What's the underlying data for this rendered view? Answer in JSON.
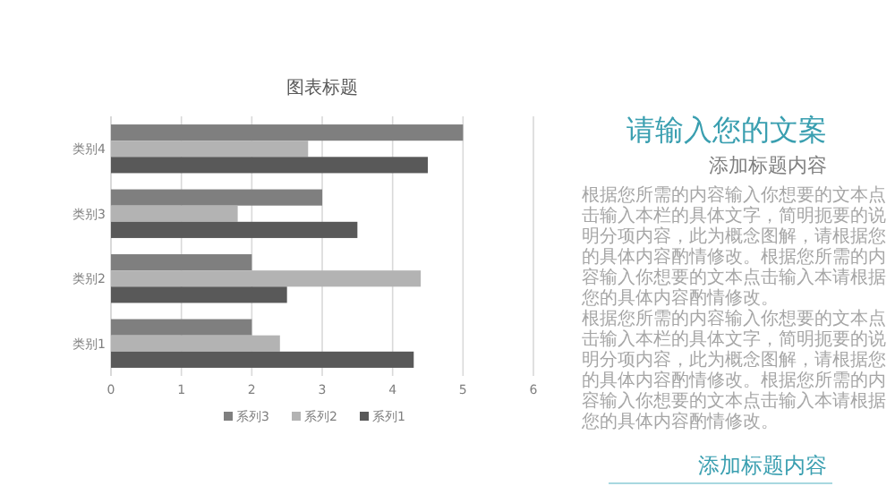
{
  "chart_data": {
    "type": "bar",
    "orientation": "horizontal",
    "title": "图表标题",
    "categories": [
      "类别4",
      "类别3",
      "类别2",
      "类别1"
    ],
    "series": [
      {
        "name": "系列3",
        "color": "#7f7f7f",
        "values": [
          5,
          3,
          2,
          2
        ]
      },
      {
        "name": "系列2",
        "color": "#b3b3b3",
        "values": [
          2.8,
          1.8,
          4.4,
          2.4
        ]
      },
      {
        "name": "系列1",
        "color": "#595959",
        "values": [
          4.5,
          3.5,
          2.5,
          4.3
        ]
      }
    ],
    "xlim": [
      0,
      6
    ],
    "xticks": [
      0,
      1,
      2,
      3,
      4,
      5,
      6
    ],
    "grid": "x",
    "legend": "bottom",
    "annotations": [
      "请输入您的文案",
      "添加标题内容",
      "根据您所需的内容输入你想要的文本点击输入本栏的具体文字，简明扼要的说明分项内容，此为概念图解，请根据您的具体内容酌情修改。根据您所需的内容输入你想要的文本点击输入本请根据您的具体内容酌情修改。",
      "根据您所需的内容输入你想要的文本点击输入本栏的具体文字，简明扼要的说明分项内容，此为概念图解，请根据您的具体内容酌情修改。根据您所需的内容输入你想要的文本点击输入本请根据您的具体内容酌情修改。",
      "添加标题内容"
    ]
  }
}
